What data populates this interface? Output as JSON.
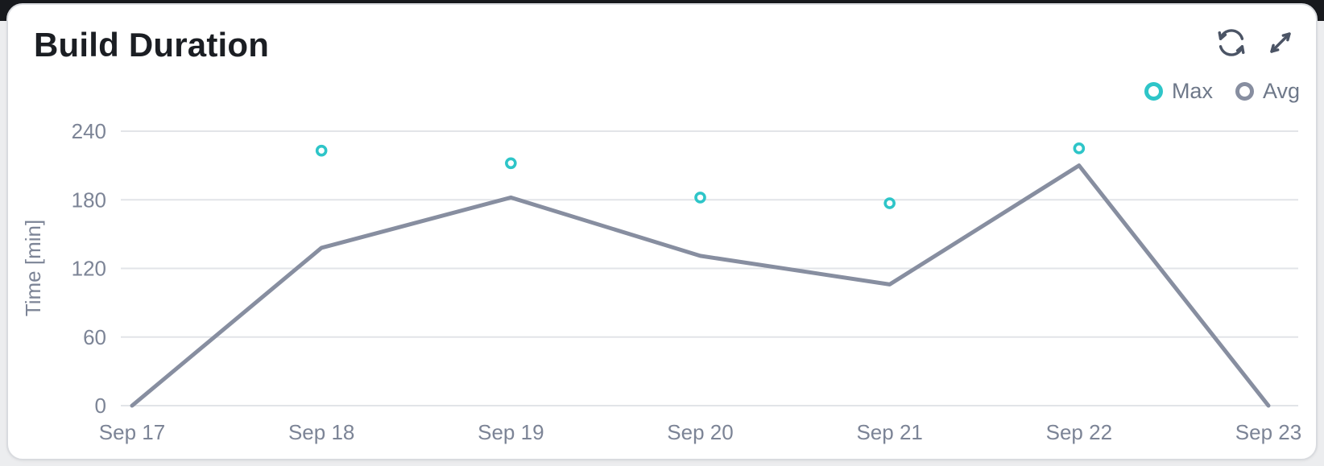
{
  "card": {
    "title": "Build Duration",
    "actions": {
      "refresh_icon": "refresh",
      "expand_icon": "expand-diagonal"
    }
  },
  "legend": [
    {
      "label": "Max",
      "color": "#2ec5c8"
    },
    {
      "label": "Avg",
      "color": "#878ea0"
    }
  ],
  "colors": {
    "max": "#2ec5c8",
    "avg": "#878ea0",
    "grid": "#e2e4e8",
    "axis_text": "#7c8496",
    "legend_text": "#6e7889",
    "title": "#1b1e23",
    "icon": "#4b5465",
    "card_bg": "#ffffff",
    "card_border": "#d9dbdf",
    "page_bg": "#ecedef",
    "top_strip": "#17191d"
  },
  "chart_data": {
    "type": "line",
    "title": "Build Duration",
    "x": [
      "Sep 17",
      "Sep 18",
      "Sep 19",
      "Sep 20",
      "Sep 21",
      "Sep 22",
      "Sep 23"
    ],
    "series": [
      {
        "name": "Avg",
        "type": "line",
        "color": "#878ea0",
        "values": [
          0,
          138,
          182,
          131,
          106,
          210,
          0
        ]
      },
      {
        "name": "Max",
        "type": "scatter",
        "color": "#2ec5c8",
        "values": [
          null,
          223,
          212,
          182,
          177,
          225,
          null
        ]
      }
    ],
    "xlabel": "",
    "ylabel": "Time [min]",
    "yticks": [
      0,
      60,
      120,
      180,
      240
    ],
    "ylim": [
      0,
      240
    ],
    "grid": true,
    "legend_position": "top-right"
  }
}
